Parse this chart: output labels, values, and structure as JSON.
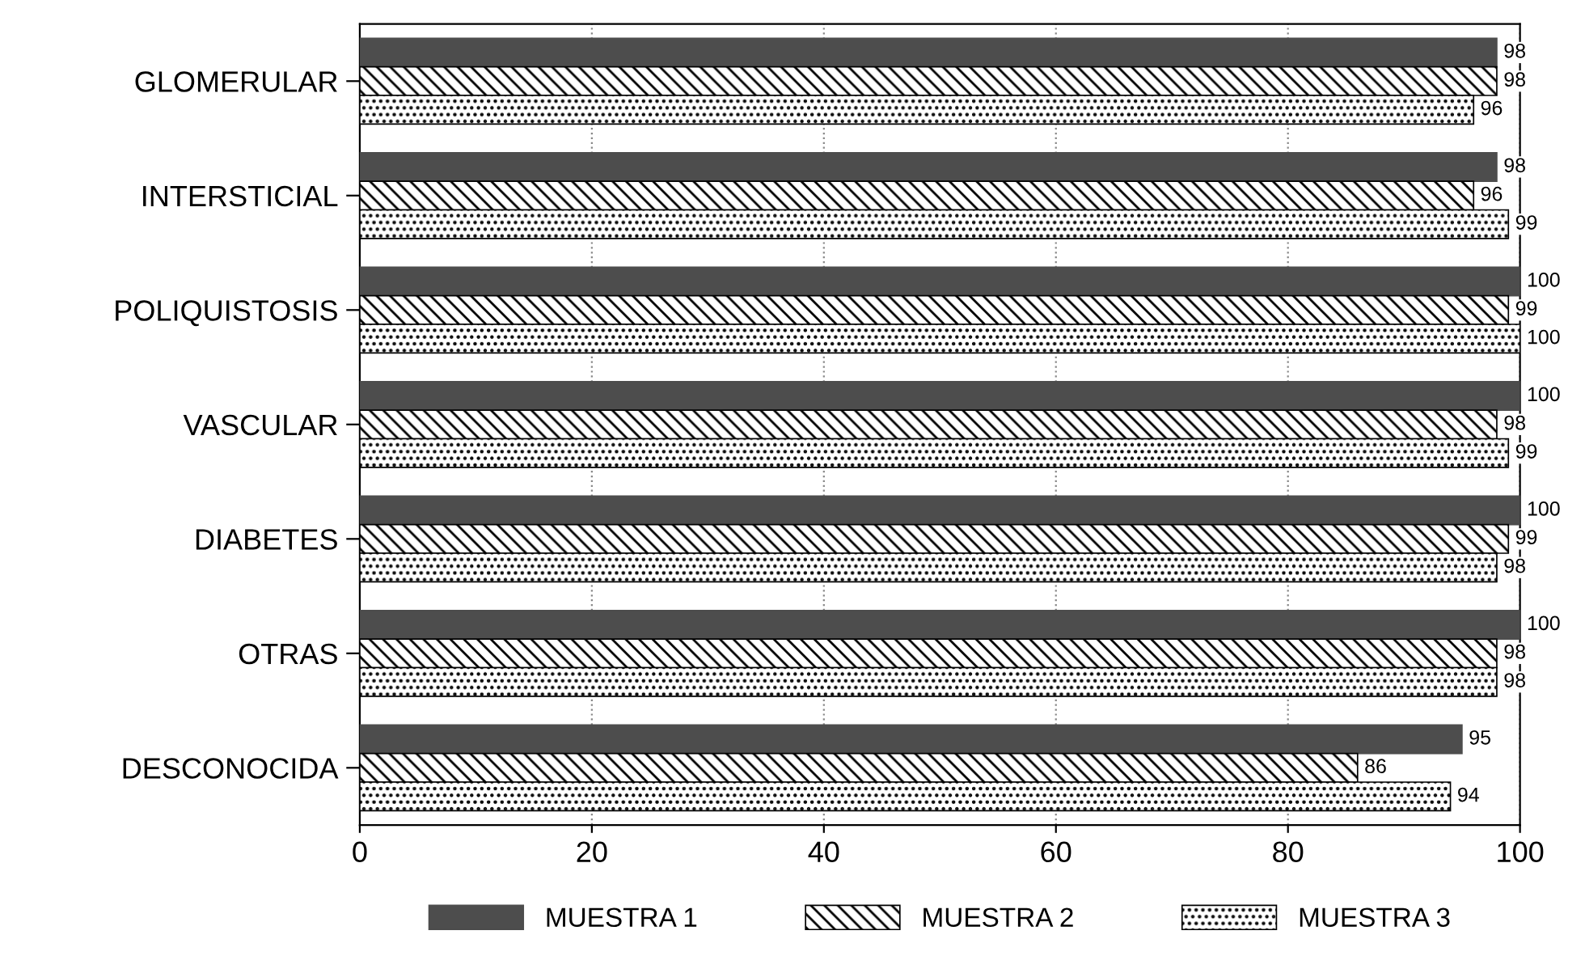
{
  "chart_data": {
    "type": "bar",
    "orientation": "horizontal",
    "categories": [
      "GLOMERULAR",
      "INTERSTICIAL",
      "POLIQUISTOSIS",
      "VASCULAR",
      "DIABETES",
      "OTRAS",
      "DESCONOCIDA"
    ],
    "series": [
      {
        "name": "MUESTRA 1",
        "color": "#4d4d4d",
        "values": [
          98,
          98,
          100,
          100,
          100,
          100,
          95
        ]
      },
      {
        "name": "MUESTRA 2",
        "color": "#000000",
        "values": [
          98,
          96,
          99,
          98,
          99,
          98,
          86
        ]
      },
      {
        "name": "MUESTRA 3",
        "color": "#000000",
        "values": [
          96,
          99,
          100,
          99,
          98,
          98,
          94
        ]
      }
    ],
    "xlim": [
      0,
      100
    ],
    "xticks": [
      0,
      20,
      40,
      60,
      80,
      100
    ],
    "grid": "x",
    "legend": "bottom",
    "data_labels": true
  }
}
